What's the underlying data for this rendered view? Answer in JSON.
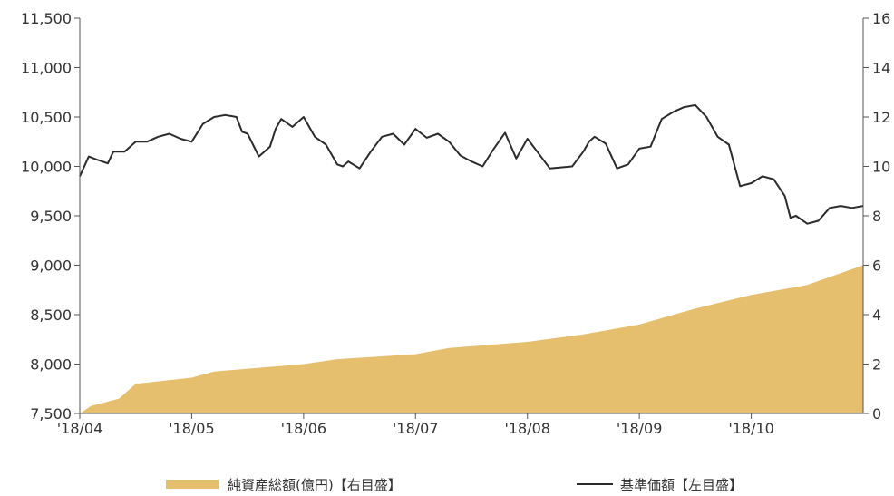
{
  "chart_data": {
    "type": "line",
    "x_tick_labels": [
      "'18/04",
      "'18/05",
      "'18/06",
      "'18/07",
      "'18/08",
      "'18/09",
      "'18/10"
    ],
    "y_left": {
      "ticks": [
        "7,500",
        "8,000",
        "8,500",
        "9,000",
        "9,500",
        "10,000",
        "10,500",
        "11,000",
        "11,500"
      ],
      "range": [
        7500,
        11500
      ]
    },
    "y_right": {
      "ticks": [
        "0",
        "2",
        "4",
        "6",
        "8",
        "10",
        "12",
        "14",
        "16"
      ],
      "range": [
        0,
        16
      ]
    },
    "grid": false,
    "legend_position": "bottom",
    "series": [
      {
        "name": "純資産総額(億円)【右目盛】",
        "kind": "area",
        "axis": "right",
        "color": "#e6bf6e",
        "x": [
          0,
          0.1,
          0.35,
          0.5,
          1,
          1.2,
          2,
          2.3,
          3,
          3.3,
          4,
          4.5,
          5,
          5.5,
          6,
          6.5,
          7
        ],
        "y": [
          0.0,
          0.3,
          0.6,
          1.2,
          1.45,
          1.7,
          2.0,
          2.2,
          2.4,
          2.65,
          2.9,
          3.2,
          3.6,
          4.25,
          4.8,
          5.2,
          6.0
        ]
      },
      {
        "name": "基準価額【左目盛】",
        "kind": "line",
        "axis": "left",
        "color": "#2b2b2b",
        "x": [
          0,
          0.08,
          0.15,
          0.25,
          0.3,
          0.4,
          0.5,
          0.6,
          0.7,
          0.8,
          0.9,
          1.0,
          1.1,
          1.2,
          1.3,
          1.4,
          1.45,
          1.5,
          1.6,
          1.7,
          1.75,
          1.8,
          1.9,
          2.0,
          2.1,
          2.2,
          2.3,
          2.35,
          2.4,
          2.5,
          2.6,
          2.7,
          2.8,
          2.9,
          3.0,
          3.1,
          3.2,
          3.3,
          3.4,
          3.5,
          3.6,
          3.7,
          3.8,
          3.9,
          4.0,
          4.1,
          4.2,
          4.3,
          4.4,
          4.5,
          4.55,
          4.6,
          4.7,
          4.8,
          4.9,
          5.0,
          5.1,
          5.2,
          5.3,
          5.4,
          5.5,
          5.6,
          5.7,
          5.8,
          5.9,
          6.0,
          6.1,
          6.2,
          6.3,
          6.35,
          6.4,
          6.5,
          6.6,
          6.7,
          6.8,
          6.9,
          6.95,
          7.0
        ],
        "y": [
          9900,
          10100,
          10070,
          10030,
          10150,
          10150,
          10250,
          10250,
          10300,
          10330,
          10280,
          10250,
          10430,
          10500,
          10520,
          10500,
          10350,
          10330,
          10100,
          10200,
          10380,
          10480,
          10400,
          10500,
          10300,
          10220,
          10020,
          10000,
          10050,
          9980,
          10150,
          10300,
          10330,
          10220,
          10380,
          10290,
          10330,
          10250,
          10110,
          10050,
          10000,
          10180,
          10340,
          10080,
          10280,
          10130,
          9980,
          9990,
          10000,
          10150,
          10250,
          10300,
          10230,
          9980,
          10020,
          10180,
          10200,
          10480,
          10550,
          10600,
          10620,
          10500,
          10300,
          10220,
          9800,
          9830,
          9900,
          9870,
          9700,
          9480,
          9500,
          9420,
          9450,
          9580,
          9600,
          9580,
          9590,
          9600
        ]
      }
    ]
  }
}
